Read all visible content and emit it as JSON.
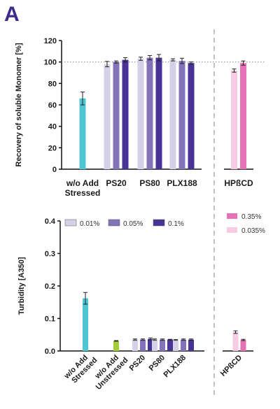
{
  "panel_label": "A",
  "colors": {
    "stressed": "#4fc6d3",
    "unstressed": "#a4cd3a",
    "conc_low": "#d4d1e8",
    "conc_mid": "#8473b8",
    "conc_high": "#4a3396",
    "hpbcd_high": "#e472b4",
    "hpbcd_low": "#f6cbe3",
    "divider": "#999999"
  },
  "chart_data": [
    {
      "type": "bar",
      "ylabel": "Recovery of soluble Monomer [%]",
      "ylim": [
        0,
        120
      ],
      "yticks": [
        0,
        20,
        40,
        60,
        80,
        100,
        120
      ],
      "reference_line": 100,
      "groups": [
        {
          "label_lines": [
            "w/o Add",
            "Stressed"
          ],
          "bars": [
            {
              "key": "stressed",
              "value": 66,
              "err": 6
            }
          ]
        },
        {
          "label_lines": [
            "PS20"
          ],
          "bars": [
            {
              "key": "conc_low",
              "value": 98,
              "err": 2.5
            },
            {
              "key": "conc_mid",
              "value": 100,
              "err": 1
            },
            {
              "key": "conc_high",
              "value": 102,
              "err": 2
            }
          ]
        },
        {
          "label_lines": [
            "PS80"
          ],
          "bars": [
            {
              "key": "conc_low",
              "value": 103,
              "err": 1.5
            },
            {
              "key": "conc_mid",
              "value": 104,
              "err": 2
            },
            {
              "key": "conc_high",
              "value": 104,
              "err": 3
            }
          ]
        },
        {
          "label_lines": [
            "PLX188"
          ],
          "bars": [
            {
              "key": "conc_low",
              "value": 102,
              "err": 1
            },
            {
              "key": "conc_mid",
              "value": 101,
              "err": 2.5
            },
            {
              "key": "conc_high",
              "value": 99,
              "err": 1
            }
          ]
        },
        {
          "label_lines": [
            "HPßCD"
          ],
          "bars": [
            {
              "key": "hpbcd_low",
              "value": 92,
              "err": 1.5
            },
            {
              "key": "hpbcd_high",
              "value": 99,
              "err": 2
            }
          ]
        }
      ]
    },
    {
      "type": "bar",
      "ylabel": "Turbidity [A350]",
      "ylim": [
        0,
        0.4
      ],
      "yticks": [
        "0.0",
        "0.1",
        "0.2",
        "0.3",
        "0.4"
      ],
      "legend": [
        {
          "key": "conc_low",
          "label": "0.01%"
        },
        {
          "key": "conc_mid",
          "label": "0.05%"
        },
        {
          "key": "conc_high",
          "label": "0.1%"
        }
      ],
      "legend_hpbcd": [
        {
          "key": "hpbcd_high",
          "label": "0.35%"
        },
        {
          "key": "hpbcd_low",
          "label": "0.035%"
        }
      ],
      "groups": [
        {
          "label_lines": [
            "w/o Add",
            "Stressed"
          ],
          "bars": [
            {
              "key": "stressed",
              "value": 0.162,
              "err": 0.018
            }
          ]
        },
        {
          "label_lines": [
            "w/o Add",
            "Unstressed"
          ],
          "bars": [
            {
              "key": "unstressed",
              "value": 0.031,
              "err": 0.001
            }
          ]
        },
        {
          "label_lines": [
            "PS20"
          ],
          "bars": [
            {
              "key": "conc_low",
              "value": 0.035,
              "err": 0.002
            },
            {
              "key": "conc_mid",
              "value": 0.035,
              "err": 0.002
            },
            {
              "key": "conc_high",
              "value": 0.037,
              "err": 0.003
            }
          ]
        },
        {
          "label_lines": [
            "PS80"
          ],
          "bars": [
            {
              "key": "conc_low",
              "value": 0.035,
              "err": 0.002
            },
            {
              "key": "conc_mid",
              "value": 0.035,
              "err": 0.002
            },
            {
              "key": "conc_high",
              "value": 0.035,
              "err": 0.001
            }
          ]
        },
        {
          "label_lines": [
            "PLX188"
          ],
          "bars": [
            {
              "key": "conc_low",
              "value": 0.034,
              "err": 0.001
            },
            {
              "key": "conc_mid",
              "value": 0.035,
              "err": 0.002
            },
            {
              "key": "conc_high",
              "value": 0.035,
              "err": 0.002
            }
          ]
        },
        {
          "label_lines": [
            "HPßCD"
          ],
          "bars": [
            {
              "key": "hpbcd_low",
              "value": 0.058,
              "err": 0.004
            },
            {
              "key": "hpbcd_high",
              "value": 0.034,
              "err": 0.002
            }
          ]
        }
      ]
    }
  ]
}
